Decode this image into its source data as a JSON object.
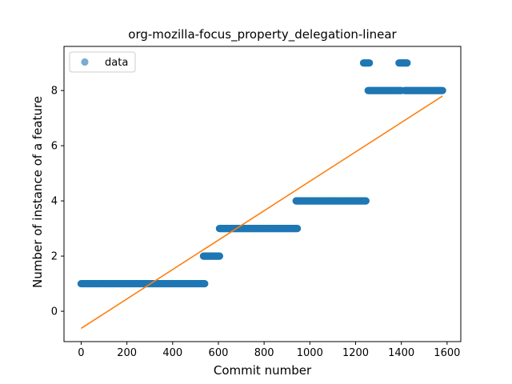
{
  "chart_data": {
    "type": "scatter",
    "title": "org-mozilla-focus_property_delegation-linear",
    "xlabel": "Commit number",
    "ylabel": "Number of instance of a feature",
    "xlim": [
      -75,
      1660
    ],
    "ylim": [
      -1.1,
      9.6
    ],
    "xticks": [
      0,
      200,
      400,
      600,
      800,
      1000,
      1200,
      1400,
      1600
    ],
    "yticks": [
      0,
      2,
      4,
      6,
      8
    ],
    "grid": false,
    "legend": {
      "placement": "upper left",
      "entries": [
        "data"
      ]
    },
    "colors": {
      "data": "#1f77b4",
      "fit": "#ff7f0e"
    },
    "series": [
      {
        "name": "data",
        "kind": "points",
        "segments": [
          {
            "x_start": 0,
            "x_end": 540,
            "y": 1
          },
          {
            "x_start": 535,
            "x_end": 605,
            "y": 2
          },
          {
            "x_start": 605,
            "x_end": 945,
            "y": 3
          },
          {
            "x_start": 940,
            "x_end": 1245,
            "y": 4
          },
          {
            "x_start": 1235,
            "x_end": 1260,
            "y": 9
          },
          {
            "x_start": 1255,
            "x_end": 1400,
            "y": 8
          },
          {
            "x_start": 1390,
            "x_end": 1425,
            "y": 9
          },
          {
            "x_start": 1415,
            "x_end": 1580,
            "y": 8
          }
        ]
      },
      {
        "kind": "line",
        "x": [
          0,
          1580
        ],
        "y": [
          -0.62,
          7.8
        ]
      }
    ]
  }
}
